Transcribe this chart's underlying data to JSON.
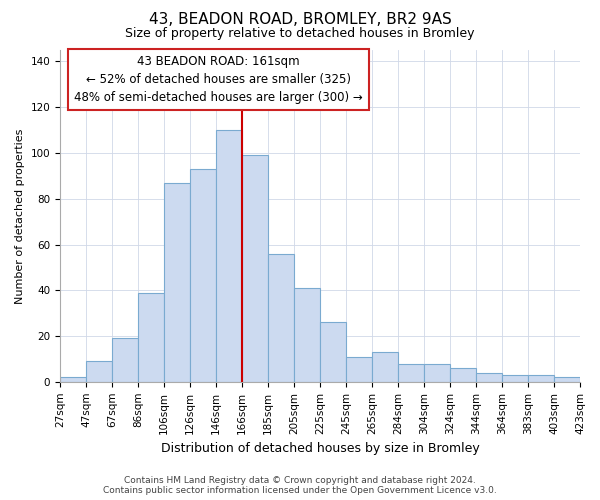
{
  "title": "43, BEADON ROAD, BROMLEY, BR2 9AS",
  "subtitle": "Size of property relative to detached houses in Bromley",
  "xlabel": "Distribution of detached houses by size in Bromley",
  "ylabel": "Number of detached properties",
  "footer_line1": "Contains HM Land Registry data © Crown copyright and database right 2024.",
  "footer_line2": "Contains public sector information licensed under the Open Government Licence v3.0.",
  "bin_labels": [
    "27sqm",
    "47sqm",
    "67sqm",
    "86sqm",
    "106sqm",
    "126sqm",
    "146sqm",
    "166sqm",
    "185sqm",
    "205sqm",
    "225sqm",
    "245sqm",
    "265sqm",
    "284sqm",
    "304sqm",
    "324sqm",
    "344sqm",
    "364sqm",
    "383sqm",
    "403sqm",
    "423sqm"
  ],
  "bar_heights": [
    2,
    9,
    19,
    39,
    87,
    93,
    110,
    99,
    56,
    41,
    26,
    11,
    13,
    8,
    8,
    6,
    4,
    3,
    3,
    2
  ],
  "bar_color": "#ccdaf0",
  "bar_edge_color": "#7aaad0",
  "vline_color": "#cc0000",
  "ylim": [
    0,
    145
  ],
  "yticks": [
    0,
    20,
    40,
    60,
    80,
    100,
    120,
    140
  ],
  "annotation_title": "43 BEADON ROAD: 161sqm",
  "annotation_line1": "← 52% of detached houses are smaller (325)",
  "annotation_line2": "48% of semi-detached houses are larger (300) →",
  "title_fontsize": 11,
  "subtitle_fontsize": 9,
  "xlabel_fontsize": 9,
  "ylabel_fontsize": 8,
  "tick_fontsize": 7.5,
  "annotation_fontsize": 8.5,
  "footer_fontsize": 6.5
}
